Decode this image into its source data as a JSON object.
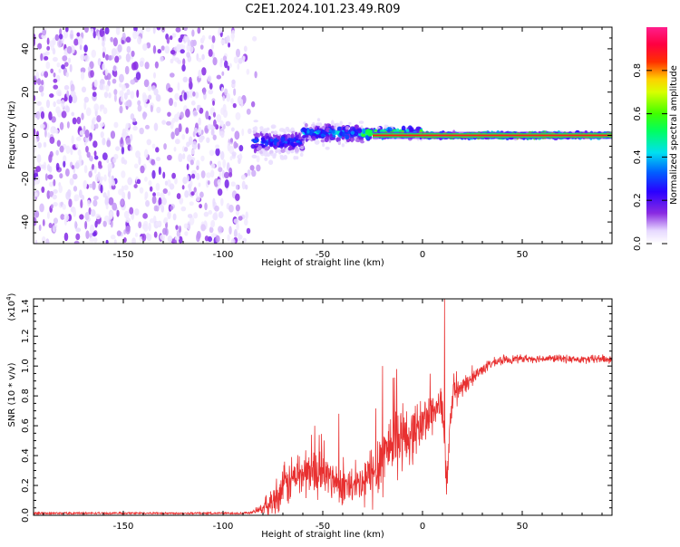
{
  "title": "C2E1.2024.101.23.49.R09",
  "chart_data": [
    {
      "type": "heatmap",
      "xlabel": "Height of straight line (km)",
      "ylabel": "Frequency (Hz)",
      "xlim": [
        -195,
        95
      ],
      "ylim": [
        -50,
        50
      ],
      "x_ticks": [
        -150,
        -100,
        -50,
        0,
        50
      ],
      "x_tick_labels": [
        "-150",
        "-100",
        "-50",
        "0",
        "50"
      ],
      "y_ticks": [
        -40,
        -20,
        0,
        20,
        40
      ],
      "y_tick_labels": [
        "-40",
        "-20",
        "0",
        "20",
        "40"
      ],
      "colorbar": {
        "label": "Normalized spectral amplitude",
        "range": [
          0,
          1
        ],
        "ticks": [
          0.0,
          0.2,
          0.4,
          0.6,
          0.8
        ],
        "tick_labels": [
          "0.0",
          "0.2",
          "0.4",
          "0.6",
          "0.8"
        ],
        "colormap": "rainbow (white → purple → blue → cyan → green → yellow → red → magenta)"
      },
      "features": [
        {
          "x_range": [
            -195,
            -82
          ],
          "description": "broadband noise across all frequencies",
          "amplitude": 0.1
        },
        {
          "x_range": [
            -85,
            -60
          ],
          "freq_center": -3,
          "freq_halfwidth": 6,
          "amplitude": 0.35
        },
        {
          "x_range": [
            -60,
            -30
          ],
          "freq_center": 1,
          "freq_halfwidth": 4,
          "amplitude": 0.45
        },
        {
          "x_range": [
            -30,
            0
          ],
          "freq_center": 1,
          "freq_halfwidth": 2,
          "amplitude": 0.7
        },
        {
          "x_range": [
            0,
            95
          ],
          "freq_center": 0,
          "freq_halfwidth": 1,
          "amplitude": 0.88
        }
      ]
    },
    {
      "type": "line",
      "xlabel": "Height of straight line (km)",
      "ylabel": "SNR (10 * v/v)",
      "y_multiplier_label": "(x10",
      "y_multiplier_exp": "4",
      "y_multiplier_close": ")",
      "xlim": [
        -195,
        95
      ],
      "ylim": [
        0,
        1.45
      ],
      "x_ticks": [
        -150,
        -100,
        -50,
        0,
        50
      ],
      "x_tick_labels": [
        "-150",
        "-100",
        "-50",
        "0",
        "50"
      ],
      "y_ticks": [
        0,
        0.2,
        0.4,
        0.6,
        0.8,
        1.0,
        1.2,
        1.4
      ],
      "y_tick_labels": [
        "0.0",
        "0.2",
        "0.4",
        "0.6",
        "0.8",
        "1.0",
        "1.2",
        "1.4"
      ],
      "series": [
        {
          "color": "#e83030",
          "x": [
            -195,
            -170,
            -140,
            -110,
            -95,
            -85,
            -80,
            -75,
            -70,
            -65,
            -60,
            -55,
            -50,
            -45,
            -40,
            -35,
            -30,
            -25,
            -20,
            -15,
            -10,
            -5,
            0,
            5,
            10,
            12,
            15,
            20,
            25,
            30,
            35,
            40,
            50,
            60,
            70,
            80,
            90,
            95
          ],
          "y": [
            0.01,
            0.01,
            0.01,
            0.01,
            0.01,
            0.02,
            0.05,
            0.1,
            0.18,
            0.25,
            0.28,
            0.3,
            0.28,
            0.24,
            0.2,
            0.18,
            0.2,
            0.28,
            0.4,
            0.5,
            0.5,
            0.55,
            0.62,
            0.7,
            0.75,
            0.2,
            0.8,
            0.85,
            0.92,
            0.98,
            1.02,
            1.04,
            1.05,
            1.05,
            1.05,
            1.04,
            1.05,
            1.04
          ],
          "noise": [
            0,
            0,
            0,
            0,
            0,
            0.01,
            0.04,
            0.1,
            0.14,
            0.16,
            0.16,
            0.16,
            0.15,
            0.13,
            0.12,
            0.12,
            0.16,
            0.22,
            0.25,
            0.22,
            0.2,
            0.18,
            0.16,
            0.15,
            0.12,
            0.1,
            0.1,
            0.07,
            0.05,
            0.04,
            0.03,
            0.03,
            0.025,
            0.025,
            0.025,
            0.025,
            0.03,
            0.03
          ],
          "annotated_spikes": [
            {
              "x": 11,
              "y": 1.45
            },
            {
              "x": -20,
              "y": 1.0
            },
            {
              "x": -13,
              "y": 0.98
            },
            {
              "x": -42,
              "y": 0.68
            },
            {
              "x": -54,
              "y": 0.6
            }
          ]
        }
      ]
    }
  ]
}
